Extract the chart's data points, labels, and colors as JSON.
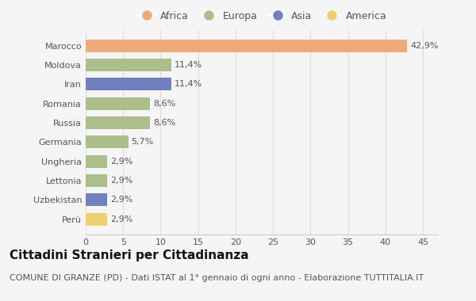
{
  "countries": [
    "Marocco",
    "Moldova",
    "Iran",
    "Romania",
    "Russia",
    "Germania",
    "Ungheria",
    "Lettonia",
    "Uzbekistan",
    "Perù"
  ],
  "values": [
    42.9,
    11.4,
    11.4,
    8.6,
    8.6,
    5.7,
    2.9,
    2.9,
    2.9,
    2.9
  ],
  "labels": [
    "42,9%",
    "11,4%",
    "11,4%",
    "8,6%",
    "8,6%",
    "5,7%",
    "2,9%",
    "2,9%",
    "2,9%",
    "2,9%"
  ],
  "continents": [
    "Africa",
    "Europa",
    "Asia",
    "Europa",
    "Europa",
    "Europa",
    "Europa",
    "Europa",
    "Asia",
    "America"
  ],
  "colors": {
    "Africa": "#EDAB7A",
    "Europa": "#ABBE8C",
    "Asia": "#7080C0",
    "America": "#EDD070"
  },
  "legend_order": [
    "Africa",
    "Europa",
    "Asia",
    "America"
  ],
  "xlim": [
    0,
    47
  ],
  "xticks": [
    0,
    5,
    10,
    15,
    20,
    25,
    30,
    35,
    40,
    45
  ],
  "title": "Cittadini Stranieri per Cittadinanza",
  "subtitle": "COMUNE DI GRANZE (PD) - Dati ISTAT al 1° gennaio di ogni anno - Elaborazione TUTTITALIA.IT",
  "bg_color": "#f5f5f5",
  "title_fontsize": 11,
  "subtitle_fontsize": 8,
  "label_fontsize": 8,
  "tick_fontsize": 8,
  "legend_fontsize": 9
}
